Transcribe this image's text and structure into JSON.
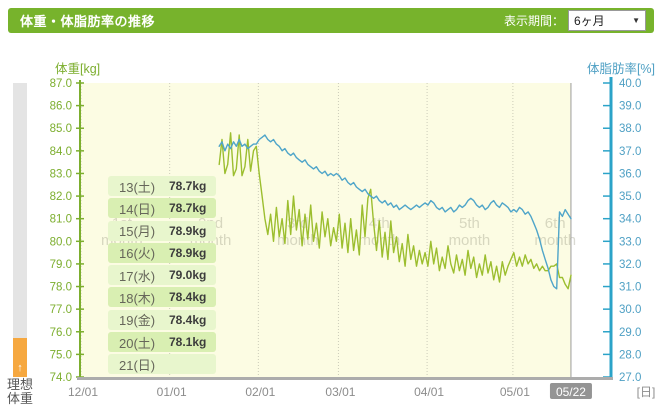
{
  "header": {
    "title": "体重・体脂肪率の推移",
    "period_label": "表示期間：",
    "period_value": "6ヶ月",
    "dropdown_arrow": "▼",
    "bar_color": "#77b32c"
  },
  "left_gauge": {
    "arrow": "↑",
    "label": "理想体重",
    "fill_color": "#f6a840"
  },
  "tooltip": {
    "rows": [
      {
        "date": "13(土)",
        "weight": "78.7kg"
      },
      {
        "date": "14(日)",
        "weight": "78.7kg"
      },
      {
        "date": "15(月)",
        "weight": "78.9kg"
      },
      {
        "date": "16(火)",
        "weight": "78.9kg"
      },
      {
        "date": "17(水)",
        "weight": "79.0kg"
      },
      {
        "date": "18(木)",
        "weight": "78.4kg"
      },
      {
        "date": "19(金)",
        "weight": "78.4kg"
      },
      {
        "date": "20(土)",
        "weight": "78.1kg"
      },
      {
        "date": "21(日)",
        "weight": ""
      }
    ]
  },
  "chart_data": {
    "type": "line",
    "title": "体重・体脂肪率の推移",
    "plot_bg": "#fcfce3",
    "after_today_bg": "#ffffff",
    "grid_color": "#cbcbb8",
    "x_tick_labels": [
      "12/01",
      "01/01",
      "02/01",
      "03/01",
      "04/01",
      "05/01"
    ],
    "x_tick_days": [
      0,
      31,
      62,
      90,
      121,
      151
    ],
    "today_label": "05/22",
    "today_day": 172,
    "x_axis_total_days": 186,
    "x_unit_label": "[日]",
    "left_axis": {
      "title": "体重[kg]",
      "min": 74.0,
      "max": 87.0,
      "step": 1.0,
      "color": "#7cae2e",
      "tick_labels": [
        "87.0",
        "86.0",
        "85.0",
        "84.0",
        "83.0",
        "82.0",
        "81.0",
        "80.0",
        "79.0",
        "78.0",
        "77.0",
        "76.0",
        "75.0",
        "74.0"
      ]
    },
    "right_axis": {
      "title": "体脂肪率[%]",
      "min": 27.0,
      "max": 40.0,
      "step": 1.0,
      "color": "#2ba3c8",
      "label_color": "#4fa0c4",
      "tick_labels": [
        "40.0",
        "39.0",
        "38.0",
        "37.0",
        "36.0",
        "35.0",
        "34.0",
        "33.0",
        "32.0",
        "31.0",
        "30.0",
        "29.0",
        "28.0",
        "27.0"
      ]
    },
    "watermarks": [
      {
        "label": "1st month",
        "center_day": 15
      },
      {
        "label": "2nd month",
        "center_day": 46
      },
      {
        "label": "3rd month",
        "center_day": 76.5
      },
      {
        "label": "4th month",
        "center_day": 105
      },
      {
        "label": "5th month",
        "center_day": 136.5
      },
      {
        "label": "6th month",
        "center_day": 166.5
      }
    ],
    "series": [
      {
        "name": "weight_kg",
        "axis": "left",
        "color": "#9cbe2f",
        "start_day_offset": 49,
        "values": [
          83.4,
          84.5,
          83.0,
          83.4,
          84.8,
          82.9,
          83.2,
          84.7,
          82.9,
          83.3,
          84.5,
          83.1,
          84.0,
          84.2,
          83.0,
          82.0,
          81.0,
          80.3,
          81.2,
          80.0,
          81.5,
          80.2,
          81.0,
          79.9,
          81.8,
          80.3,
          82.0,
          80.5,
          81.4,
          79.8,
          81.2,
          80.1,
          81.6,
          80.0,
          80.8,
          79.7,
          81.3,
          80.2,
          81.0,
          79.8,
          80.6,
          80.0,
          81.2,
          79.7,
          80.8,
          79.5,
          81.0,
          79.6,
          80.5,
          79.4,
          81.6,
          80.2,
          81.9,
          82.3,
          80.8,
          79.6,
          80.9,
          79.3,
          80.4,
          79.2,
          80.9,
          79.5,
          80.2,
          79.1,
          79.9,
          78.9,
          80.3,
          79.2,
          79.8,
          78.9,
          79.6,
          79.0,
          79.5,
          78.9,
          80.0,
          79.0,
          79.7,
          78.7,
          79.3,
          78.8,
          79.8,
          79.0,
          78.6,
          79.4,
          78.7,
          79.2,
          78.5,
          79.6,
          78.8,
          79.3,
          78.4,
          79.0,
          78.5,
          79.4,
          78.6,
          79.1,
          78.3,
          78.9,
          78.2,
          79.1,
          78.5,
          78.9,
          79.2,
          79.5,
          78.9,
          79.3,
          78.9,
          79.4,
          79.0,
          79.2,
          78.8,
          79.0,
          78.7,
          78.9,
          78.7,
          78.7,
          78.9,
          78.9,
          79.0,
          78.4,
          78.4,
          78.1,
          77.9,
          78.5
        ]
      },
      {
        "name": "bodyfat_pct",
        "axis": "right",
        "color": "#4fa5c9",
        "start_day_offset": 49,
        "values": [
          37.2,
          37.4,
          37.0,
          37.3,
          37.1,
          37.4,
          37.2,
          37.5,
          37.2,
          37.3,
          37.1,
          37.2,
          37.3,
          37.3,
          37.5,
          37.6,
          37.7,
          37.5,
          37.4,
          37.5,
          37.3,
          37.2,
          37.0,
          37.1,
          36.9,
          36.8,
          36.9,
          36.7,
          36.6,
          36.5,
          36.6,
          36.4,
          36.3,
          36.2,
          36.3,
          36.1,
          36.0,
          36.1,
          35.9,
          36.0,
          35.9,
          36.0,
          35.9,
          35.7,
          35.8,
          35.6,
          35.5,
          35.6,
          35.4,
          35.3,
          35.2,
          35.3,
          35.1,
          35.0,
          34.9,
          35.0,
          34.8,
          34.7,
          34.8,
          34.6,
          34.7,
          34.5,
          34.6,
          34.4,
          34.5,
          34.6,
          34.5,
          34.4,
          34.5,
          34.6,
          34.5,
          34.6,
          34.7,
          34.6,
          34.8,
          34.7,
          34.5,
          34.4,
          34.5,
          34.3,
          34.4,
          34.5,
          34.3,
          34.4,
          34.6,
          34.5,
          34.6,
          34.8,
          34.9,
          34.8,
          34.6,
          34.5,
          34.6,
          34.4,
          34.5,
          34.7,
          34.8,
          34.6,
          34.5,
          34.7,
          34.6,
          34.5,
          34.3,
          34.4,
          34.3,
          34.5,
          34.4,
          34.2,
          34.3,
          34.1,
          33.8,
          33.5,
          33.1,
          32.6,
          32.2,
          31.8,
          31.3,
          31.0,
          30.9,
          34.3,
          34.1,
          34.4,
          34.2,
          34.0
        ]
      }
    ],
    "legend": "none",
    "today_badge_bg": "#949494"
  }
}
